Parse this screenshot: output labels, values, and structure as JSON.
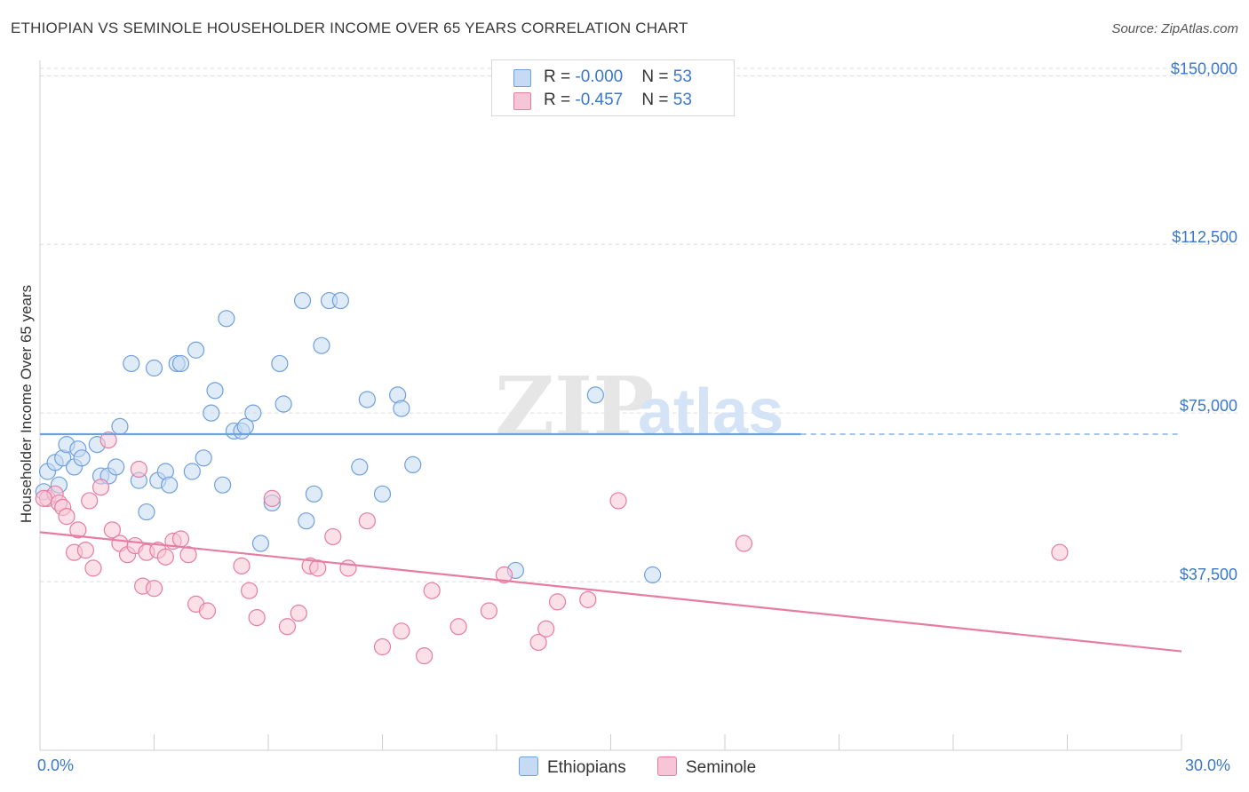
{
  "title": "ETHIOPIAN VS SEMINOLE HOUSEHOLDER INCOME OVER 65 YEARS CORRELATION CHART",
  "source": "Source: ZipAtlas.com",
  "watermark": {
    "zip": "ZIP",
    "atlas": "atlas"
  },
  "legend": {
    "rows": [
      {
        "r_label": "R = ",
        "r_value": "-0.000",
        "n_label": "N = ",
        "n_value": "53",
        "color": "#a9c8ef"
      },
      {
        "r_label": "R = ",
        "r_value": " -0.457",
        "n_label": "N = ",
        "n_value": "53",
        "color": "#f5b8cc"
      }
    ]
  },
  "bottom_legend": [
    {
      "label": "Ethiopians",
      "color": "#a9c8ef"
    },
    {
      "label": "Seminole",
      "color": "#f5b8cc"
    }
  ],
  "chart_data": {
    "type": "scatter",
    "ylabel": "Householder Income Over 65 years",
    "xlim": [
      0,
      30
    ],
    "ylim": [
      0,
      155000
    ],
    "x_tick_labels": [
      "0.0%",
      "30.0%"
    ],
    "y_ticks": [
      {
        "value": 37500,
        "label": "$37,500"
      },
      {
        "value": 75000,
        "label": "$75,000"
      },
      {
        "value": 112500,
        "label": "$112,500"
      },
      {
        "value": 150000,
        "label": "$150,000"
      }
    ],
    "series": [
      {
        "name": "Ethiopians",
        "color": "#6fa0de",
        "fill": "#c6daf3",
        "trend": {
          "x0": 0,
          "y0": 70300,
          "x1": 20.0,
          "y1": 70300,
          "dashed_to": 30
        },
        "points": [
          [
            0.2,
            62000
          ],
          [
            0.4,
            64000
          ],
          [
            0.5,
            59000
          ],
          [
            0.6,
            65000
          ],
          [
            0.7,
            68000
          ],
          [
            0.9,
            63000
          ],
          [
            1.0,
            67000
          ],
          [
            1.1,
            65000
          ],
          [
            1.5,
            68000
          ],
          [
            1.6,
            61000
          ],
          [
            1.8,
            61000
          ],
          [
            2.0,
            63000
          ],
          [
            2.1,
            72000
          ],
          [
            2.4,
            86000
          ],
          [
            2.6,
            60000
          ],
          [
            2.8,
            53000
          ],
          [
            3.0,
            85000
          ],
          [
            3.1,
            60000
          ],
          [
            3.3,
            62000
          ],
          [
            3.4,
            59000
          ],
          [
            3.6,
            86000
          ],
          [
            3.7,
            86000
          ],
          [
            4.0,
            62000
          ],
          [
            4.1,
            89000
          ],
          [
            4.3,
            65000
          ],
          [
            4.5,
            75000
          ],
          [
            4.6,
            80000
          ],
          [
            4.8,
            59000
          ],
          [
            4.9,
            96000
          ],
          [
            5.1,
            71000
          ],
          [
            5.3,
            71000
          ],
          [
            5.4,
            72000
          ],
          [
            5.6,
            75000
          ],
          [
            5.8,
            46000
          ],
          [
            6.1,
            55000
          ],
          [
            6.3,
            86000
          ],
          [
            6.4,
            77000
          ],
          [
            6.9,
            100000
          ],
          [
            7.0,
            51000
          ],
          [
            7.2,
            57000
          ],
          [
            7.4,
            90000
          ],
          [
            7.6,
            100000
          ],
          [
            7.9,
            100000
          ],
          [
            8.4,
            63000
          ],
          [
            8.6,
            78000
          ],
          [
            9.0,
            57000
          ],
          [
            9.4,
            79000
          ],
          [
            9.5,
            76000
          ],
          [
            9.8,
            63500
          ],
          [
            12.5,
            40000
          ],
          [
            14.6,
            79000
          ],
          [
            16.1,
            39000
          ],
          [
            0.1,
            57500
          ]
        ]
      },
      {
        "name": "Seminole",
        "color": "#e77ca2",
        "fill": "#f7c6d6",
        "trend": {
          "x0": 0,
          "y0": 48500,
          "x1": 30,
          "y1": 22000
        },
        "points": [
          [
            0.2,
            56000
          ],
          [
            0.4,
            57000
          ],
          [
            0.5,
            55000
          ],
          [
            0.6,
            54000
          ],
          [
            0.7,
            52000
          ],
          [
            0.9,
            44000
          ],
          [
            1.0,
            49000
          ],
          [
            1.2,
            44500
          ],
          [
            1.3,
            55500
          ],
          [
            1.4,
            40500
          ],
          [
            1.6,
            58500
          ],
          [
            1.8,
            69000
          ],
          [
            1.9,
            49000
          ],
          [
            2.1,
            46000
          ],
          [
            2.3,
            43500
          ],
          [
            2.5,
            45500
          ],
          [
            2.6,
            62500
          ],
          [
            2.7,
            36500
          ],
          [
            2.8,
            44000
          ],
          [
            3.0,
            36000
          ],
          [
            3.1,
            44500
          ],
          [
            3.3,
            43000
          ],
          [
            3.5,
            46500
          ],
          [
            3.7,
            47000
          ],
          [
            3.9,
            43500
          ],
          [
            4.1,
            32500
          ],
          [
            4.4,
            31000
          ],
          [
            5.3,
            41000
          ],
          [
            5.5,
            35500
          ],
          [
            5.7,
            29500
          ],
          [
            6.1,
            56000
          ],
          [
            6.5,
            27500
          ],
          [
            6.8,
            30500
          ],
          [
            7.1,
            41000
          ],
          [
            7.3,
            40500
          ],
          [
            7.7,
            47500
          ],
          [
            8.1,
            40500
          ],
          [
            8.6,
            51000
          ],
          [
            9.0,
            23000
          ],
          [
            9.5,
            26500
          ],
          [
            10.1,
            21000
          ],
          [
            10.3,
            35500
          ],
          [
            11.0,
            27500
          ],
          [
            11.8,
            31000
          ],
          [
            12.2,
            39000
          ],
          [
            13.1,
            24000
          ],
          [
            13.3,
            27000
          ],
          [
            13.6,
            33000
          ],
          [
            14.4,
            33500
          ],
          [
            15.2,
            55500
          ],
          [
            18.5,
            46000
          ],
          [
            26.8,
            44000
          ],
          [
            0.1,
            56000
          ]
        ]
      }
    ]
  }
}
